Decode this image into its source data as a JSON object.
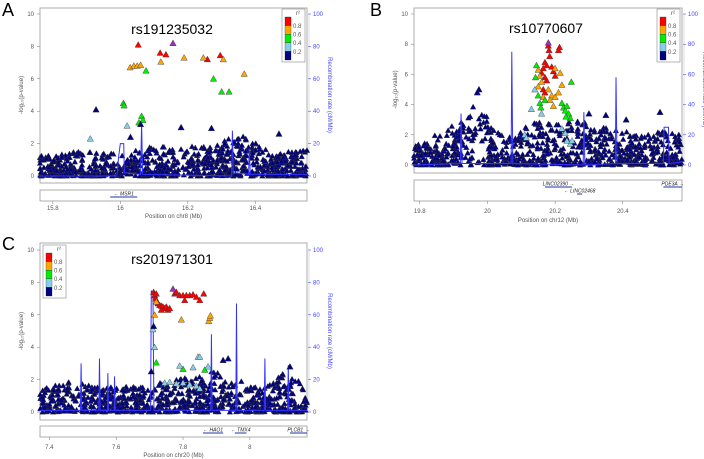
{
  "colors": {
    "lead": "#9632b8",
    "r08": "#ff0000",
    "r06": "#ffa500",
    "r04": "#00ee00",
    "r02": "#87ceeb",
    "r00": "#000080",
    "recomb": "#3333ff"
  },
  "legend": {
    "title": "r²",
    "labels": [
      "0.8",
      "0.6",
      "0.4",
      "0.2"
    ]
  },
  "chart_data": [
    {
      "type": "scatter",
      "panel_label": "A",
      "title": "rs191235032",
      "xlabel": "Position on chr8 (Mb)",
      "ylabel": "-log₁₀(p-value)",
      "ylabel_right": "Recombination rate (cM/Mb)",
      "xlim": [
        15.762,
        16.553
      ],
      "ylim": [
        0,
        10
      ],
      "ylim_right": [
        0,
        100
      ],
      "xticks": [
        "15.8",
        "16",
        "16.2",
        "16.4"
      ],
      "yticks": [
        "0",
        "2",
        "4",
        "6",
        "8",
        "10"
      ],
      "yticks_right": [
        "0",
        "20",
        "40",
        "60",
        "80",
        "100"
      ],
      "lead": {
        "x": 16.156,
        "y": 8.2
      },
      "points": [
        [
          16.053,
          8.1,
          "r08"
        ],
        [
          16.118,
          7.6,
          "r08"
        ],
        [
          16.135,
          7.5,
          "r08"
        ],
        [
          16.258,
          7.2,
          "r08"
        ],
        [
          16.296,
          7.45,
          "r08"
        ],
        [
          16.029,
          6.7,
          "r06"
        ],
        [
          16.04,
          6.8,
          "r06"
        ],
        [
          16.05,
          6.8,
          "r06"
        ],
        [
          16.06,
          6.85,
          "r06"
        ],
        [
          16.12,
          7.05,
          "r06"
        ],
        [
          16.189,
          7.3,
          "r06"
        ],
        [
          16.246,
          7.3,
          "r06"
        ],
        [
          16.305,
          7.2,
          "r06"
        ],
        [
          16.367,
          6.3,
          "r06"
        ],
        [
          16.076,
          6.5,
          "r04"
        ],
        [
          16.276,
          6.0,
          "r04"
        ],
        [
          16.3,
          5.2,
          "r04"
        ],
        [
          16.322,
          5.2,
          "r04"
        ],
        [
          16.009,
          4.5,
          "r04"
        ],
        [
          16.011,
          4.35,
          "r04"
        ],
        [
          16.063,
          3.7,
          "r04"
        ],
        [
          16.067,
          3.45,
          "r04"
        ],
        [
          16.055,
          3.3,
          "r04"
        ],
        [
          15.911,
          2.3,
          "r02"
        ],
        [
          16.02,
          3.1,
          "r02"
        ],
        [
          15.928,
          4.1,
          "r00"
        ],
        [
          16.06,
          3.2,
          "r00"
        ],
        [
          16.18,
          3.0,
          "r00"
        ],
        [
          16.27,
          2.95,
          "r00"
        ],
        [
          16.47,
          2.6,
          "r00"
        ],
        [
          16.03,
          2.4,
          "r00"
        ]
      ],
      "background": [
        [
          15.762,
          1.3
        ],
        [
          15.86,
          1.6
        ],
        [
          16.0,
          1.4
        ],
        [
          16.08,
          1.8
        ],
        [
          16.25,
          1.9
        ],
        [
          16.36,
          2.6
        ],
        [
          16.45,
          1.4
        ],
        [
          16.553,
          1.6
        ]
      ],
      "recomb": [
        [
          15.762,
          0
        ],
        [
          15.99,
          0
        ],
        [
          15.995,
          12
        ],
        [
          16.0,
          20
        ],
        [
          16.01,
          20
        ],
        [
          16.012,
          2
        ],
        [
          16.06,
          1
        ],
        [
          16.063,
          33
        ],
        [
          16.066,
          1
        ],
        [
          16.33,
          0
        ],
        [
          16.332,
          28
        ],
        [
          16.335,
          2
        ],
        [
          16.38,
          1
        ],
        [
          16.382,
          17
        ],
        [
          16.385,
          1
        ],
        [
          16.553,
          1
        ]
      ],
      "genes": [
        {
          "name": "← MSR1",
          "start": 15.97,
          "end": 16.05,
          "row": 0
        }
      ]
    },
    {
      "type": "scatter",
      "panel_label": "B",
      "title": "rs10770607",
      "xlabel": "Position on chr12 (Mb)",
      "ylabel": "-log₁₀(p-value)",
      "ylabel_right": "Recombination rate (cM/Mb)",
      "xlim": [
        19.783,
        20.575
      ],
      "ylim": [
        0,
        10
      ],
      "ylim_right": [
        0,
        100
      ],
      "xticks": [
        "19.8",
        "20",
        "20.2",
        "20.4"
      ],
      "yticks": [
        "0",
        "2",
        "4",
        "6",
        "8",
        "10"
      ],
      "yticks_right": [
        "0",
        "20",
        "40",
        "60",
        "80",
        "100"
      ],
      "lead": {
        "x": 20.18,
        "y": 8.1
      },
      "points": [
        [
          20.18,
          7.9,
          "r08"
        ],
        [
          20.182,
          7.6,
          "r08"
        ],
        [
          20.184,
          7.2,
          "r08"
        ],
        [
          20.213,
          7.8,
          "r08"
        ],
        [
          20.21,
          7.6,
          "r08"
        ],
        [
          20.17,
          6.8,
          "r08"
        ],
        [
          20.175,
          6.6,
          "r08"
        ],
        [
          20.165,
          6.4,
          "r08"
        ],
        [
          20.19,
          6.5,
          "r08"
        ],
        [
          20.195,
          6.2,
          "r08"
        ],
        [
          20.2,
          5.9,
          "r08"
        ],
        [
          20.17,
          5.8,
          "r08"
        ],
        [
          20.175,
          5.6,
          "r08"
        ],
        [
          20.165,
          5.0,
          "r08"
        ],
        [
          20.16,
          6.1,
          "r08"
        ],
        [
          20.17,
          4.8,
          "r08"
        ],
        [
          20.15,
          6.3,
          "r06"
        ],
        [
          20.155,
          5.9,
          "r06"
        ],
        [
          20.16,
          5.5,
          "r06"
        ],
        [
          20.15,
          5.2,
          "r06"
        ],
        [
          20.18,
          5.0,
          "r06"
        ],
        [
          20.19,
          4.6,
          "r06"
        ],
        [
          20.2,
          4.5,
          "r06"
        ],
        [
          20.21,
          4.8,
          "r06"
        ],
        [
          20.22,
          5.3,
          "r06"
        ],
        [
          20.215,
          6.1,
          "r06"
        ],
        [
          20.2,
          6.4,
          "r06"
        ],
        [
          20.185,
          4.3,
          "r06"
        ],
        [
          20.195,
          3.9,
          "r06"
        ],
        [
          20.165,
          4.5,
          "r06"
        ],
        [
          20.145,
          6.6,
          "r04"
        ],
        [
          20.142,
          5.8,
          "r04"
        ],
        [
          20.15,
          4.6,
          "r04"
        ],
        [
          20.155,
          4.1,
          "r04"
        ],
        [
          20.158,
          3.8,
          "r04"
        ],
        [
          20.22,
          4.1,
          "r04"
        ],
        [
          20.225,
          3.8,
          "r04"
        ],
        [
          20.23,
          3.6,
          "r04"
        ],
        [
          20.235,
          3.9,
          "r04"
        ],
        [
          20.24,
          3.4,
          "r04"
        ],
        [
          20.245,
          3.1,
          "r04"
        ],
        [
          20.248,
          5.5,
          "r04"
        ],
        [
          20.232,
          3.2,
          "r04"
        ],
        [
          20.17,
          4.3,
          "r04"
        ],
        [
          20.14,
          5.0,
          "r02"
        ],
        [
          20.13,
          3.7,
          "r02"
        ],
        [
          20.16,
          3.4,
          "r02"
        ],
        [
          20.11,
          2.0,
          "r02"
        ],
        [
          20.115,
          1.8,
          "r02"
        ],
        [
          20.22,
          2.4,
          "r02"
        ],
        [
          20.23,
          2.1,
          "r02"
        ],
        [
          20.235,
          1.6,
          "r02"
        ],
        [
          20.245,
          1.4,
          "r02"
        ],
        [
          20.25,
          1.6,
          "r02"
        ],
        [
          19.975,
          5.0,
          "r00"
        ],
        [
          19.97,
          4.8,
          "r00"
        ],
        [
          20.51,
          3.5,
          "r00"
        ],
        [
          20.3,
          3.4,
          "r00"
        ],
        [
          20.35,
          3.3,
          "r00"
        ],
        [
          20.41,
          3.0,
          "r00"
        ]
      ],
      "background": [
        [
          19.783,
          1.4
        ],
        [
          19.87,
          2.2
        ],
        [
          19.935,
          3.2
        ],
        [
          19.975,
          4.8
        ],
        [
          20.02,
          2.2
        ],
        [
          20.08,
          2.0
        ],
        [
          20.13,
          2.8
        ],
        [
          20.26,
          3.0
        ],
        [
          20.33,
          2.6
        ],
        [
          20.45,
          2.1
        ],
        [
          20.575,
          2.3
        ]
      ],
      "recomb": [
        [
          19.783,
          0
        ],
        [
          19.92,
          1
        ],
        [
          19.922,
          34
        ],
        [
          19.925,
          1
        ],
        [
          20.07,
          1
        ],
        [
          20.072,
          75
        ],
        [
          20.075,
          1
        ],
        [
          20.283,
          0
        ],
        [
          20.285,
          35
        ],
        [
          20.288,
          0
        ],
        [
          20.378,
          1
        ],
        [
          20.38,
          58
        ],
        [
          20.383,
          1
        ],
        [
          20.52,
          1
        ],
        [
          20.522,
          25
        ],
        [
          20.535,
          25
        ],
        [
          20.537,
          1
        ],
        [
          20.575,
          2
        ]
      ],
      "genes": [
        {
          "name": "LINC02390 →",
          "start": 20.17,
          "end": 20.25,
          "row": 0
        },
        {
          "name": "← LINC02468",
          "start": 20.265,
          "end": 20.28,
          "row": 1
        },
        {
          "name": "PDE3A →",
          "start": 20.52,
          "end": 20.575,
          "row": 0
        }
      ]
    },
    {
      "type": "scatter",
      "panel_label": "C",
      "title": "rs201971301",
      "xlabel": "Position on chr20 (Mb)",
      "ylabel": "-log₁₀(p-value)",
      "ylabel_right": "Recombination rate (cM/Mb)",
      "xlim": [
        7.372,
        8.171
      ],
      "ylim": [
        0,
        10
      ],
      "ylim_right": [
        0,
        100
      ],
      "xticks": [
        "7.4",
        "7.6",
        "7.8",
        "8"
      ],
      "yticks": [
        "0",
        "2",
        "4",
        "6",
        "8",
        "10"
      ],
      "yticks_right": [
        "0",
        "20",
        "40",
        "60",
        "80",
        "100"
      ],
      "lead": {
        "x": 7.77,
        "y": 7.6
      },
      "points": [
        [
          7.712,
          7.4,
          "r08"
        ],
        [
          7.715,
          7.2,
          "r08"
        ],
        [
          7.718,
          7.0,
          "r08"
        ],
        [
          7.72,
          7.3,
          "r08"
        ],
        [
          7.725,
          6.7,
          "r08"
        ],
        [
          7.73,
          6.6,
          "r08"
        ],
        [
          7.735,
          6.55,
          "r08"
        ],
        [
          7.74,
          6.5,
          "r08"
        ],
        [
          7.745,
          6.4,
          "r08"
        ],
        [
          7.75,
          6.5,
          "r08"
        ],
        [
          7.755,
          6.3,
          "r08"
        ],
        [
          7.76,
          6.4,
          "r08"
        ],
        [
          7.775,
          7.3,
          "r08"
        ],
        [
          7.78,
          7.4,
          "r08"
        ],
        [
          7.79,
          7.2,
          "r08"
        ],
        [
          7.8,
          7.2,
          "r08"
        ],
        [
          7.805,
          6.9,
          "r08"
        ],
        [
          7.81,
          7.2,
          "r08"
        ],
        [
          7.82,
          7.2,
          "r08"
        ],
        [
          7.83,
          7.25,
          "r08"
        ],
        [
          7.84,
          7.1,
          "r08"
        ],
        [
          7.85,
          6.9,
          "r08"
        ],
        [
          7.862,
          7.3,
          "r08"
        ],
        [
          7.735,
          6.3,
          "r08"
        ],
        [
          7.715,
          6.0,
          "r06"
        ],
        [
          7.72,
          6.8,
          "r06"
        ],
        [
          7.795,
          5.7,
          "r06"
        ],
        [
          7.877,
          5.6,
          "r06"
        ],
        [
          7.88,
          5.8,
          "r06"
        ],
        [
          7.882,
          5.95,
          "r06"
        ],
        [
          7.72,
          3.05,
          "r04"
        ],
        [
          7.8,
          2.65,
          "r04"
        ],
        [
          7.865,
          2.6,
          "r04"
        ],
        [
          7.71,
          5.1,
          "r02"
        ],
        [
          7.715,
          4.0,
          "r02"
        ],
        [
          7.79,
          2.85,
          "r02"
        ],
        [
          7.83,
          2.75,
          "r02"
        ],
        [
          7.845,
          3.4,
          "r02"
        ],
        [
          7.85,
          3.4,
          "r02"
        ],
        [
          7.875,
          2.8,
          "r02"
        ],
        [
          7.745,
          1.8,
          "r02"
        ],
        [
          7.76,
          1.85,
          "r02"
        ],
        [
          7.78,
          1.75,
          "r02"
        ],
        [
          7.8,
          1.8,
          "r02"
        ],
        [
          7.82,
          1.7,
          "r02"
        ],
        [
          7.84,
          1.6,
          "r02"
        ],
        [
          7.85,
          1.45,
          "r02"
        ],
        [
          7.712,
          5.3,
          "r00"
        ],
        [
          7.705,
          2.5,
          "r00"
        ],
        [
          7.935,
          3.3,
          "r00"
        ],
        [
          7.92,
          3.2,
          "r00"
        ],
        [
          8.12,
          2.8,
          "r00"
        ]
      ],
      "background": [
        [
          7.372,
          1.4
        ],
        [
          7.47,
          1.9
        ],
        [
          7.55,
          1.5
        ],
        [
          7.69,
          1.6
        ],
        [
          7.76,
          2.0
        ],
        [
          7.86,
          2.2
        ],
        [
          7.92,
          3.1
        ],
        [
          7.96,
          2.0
        ],
        [
          8.04,
          1.4
        ],
        [
          8.12,
          2.7
        ],
        [
          8.171,
          1.2
        ]
      ],
      "recomb": [
        [
          7.372,
          1
        ],
        [
          7.493,
          1
        ],
        [
          7.495,
          30
        ],
        [
          7.497,
          1
        ],
        [
          7.548,
          1
        ],
        [
          7.55,
          33
        ],
        [
          7.552,
          1
        ],
        [
          7.574,
          1
        ],
        [
          7.575,
          24
        ],
        [
          7.577,
          1
        ],
        [
          7.594,
          1
        ],
        [
          7.595,
          22
        ],
        [
          7.597,
          1
        ],
        [
          7.703,
          1
        ],
        [
          7.705,
          75
        ],
        [
          7.71,
          72
        ],
        [
          7.713,
          1
        ],
        [
          7.883,
          1
        ],
        [
          7.885,
          48
        ],
        [
          7.887,
          1
        ],
        [
          7.958,
          1
        ],
        [
          7.96,
          67
        ],
        [
          7.962,
          1
        ],
        [
          8.043,
          1
        ],
        [
          8.045,
          33
        ],
        [
          8.047,
          1
        ],
        [
          8.113,
          1
        ],
        [
          8.115,
          29
        ],
        [
          8.117,
          1
        ],
        [
          8.171,
          1
        ]
      ],
      "genes": [
        {
          "name": "← HAO1",
          "start": 7.86,
          "end": 7.92,
          "row": 0
        },
        {
          "name": "← TMX4",
          "start": 7.955,
          "end": 7.99,
          "row": 0
        },
        {
          "name": "PLCB1 →",
          "start": 8.12,
          "end": 8.171,
          "row": 0
        }
      ]
    }
  ]
}
